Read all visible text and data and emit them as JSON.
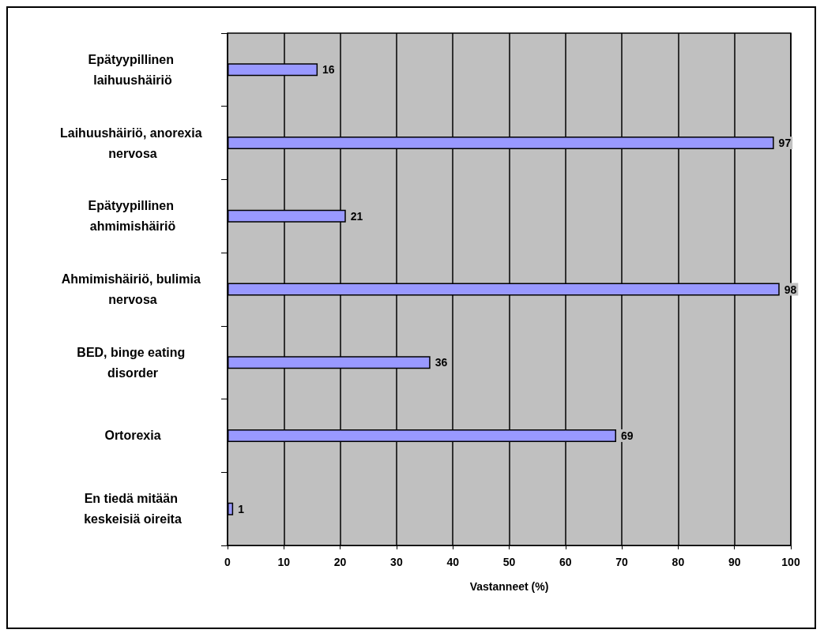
{
  "chart_data": {
    "type": "bar",
    "orientation": "horizontal",
    "xlabel": "Vastanneet (%)",
    "categories": [
      "Epätyypillinen laihuushäiriö",
      "Laihuushäiriö, anorexia nervosa",
      "Epätyypillinen ahmimishäiriö",
      "Ahmimishäiriö, bulimia nervosa",
      "BED, binge eating disorder",
      "Ortorexia",
      "En tiedä mitään keskeisiä oireita"
    ],
    "values": [
      16,
      97,
      21,
      98,
      36,
      69,
      1
    ],
    "color": "#9999ff",
    "xlim": [
      0,
      100
    ],
    "xticks": [
      0,
      10,
      20,
      30,
      40,
      50,
      60,
      70,
      80,
      90,
      100
    ],
    "grid": "x",
    "data_labels": true
  }
}
